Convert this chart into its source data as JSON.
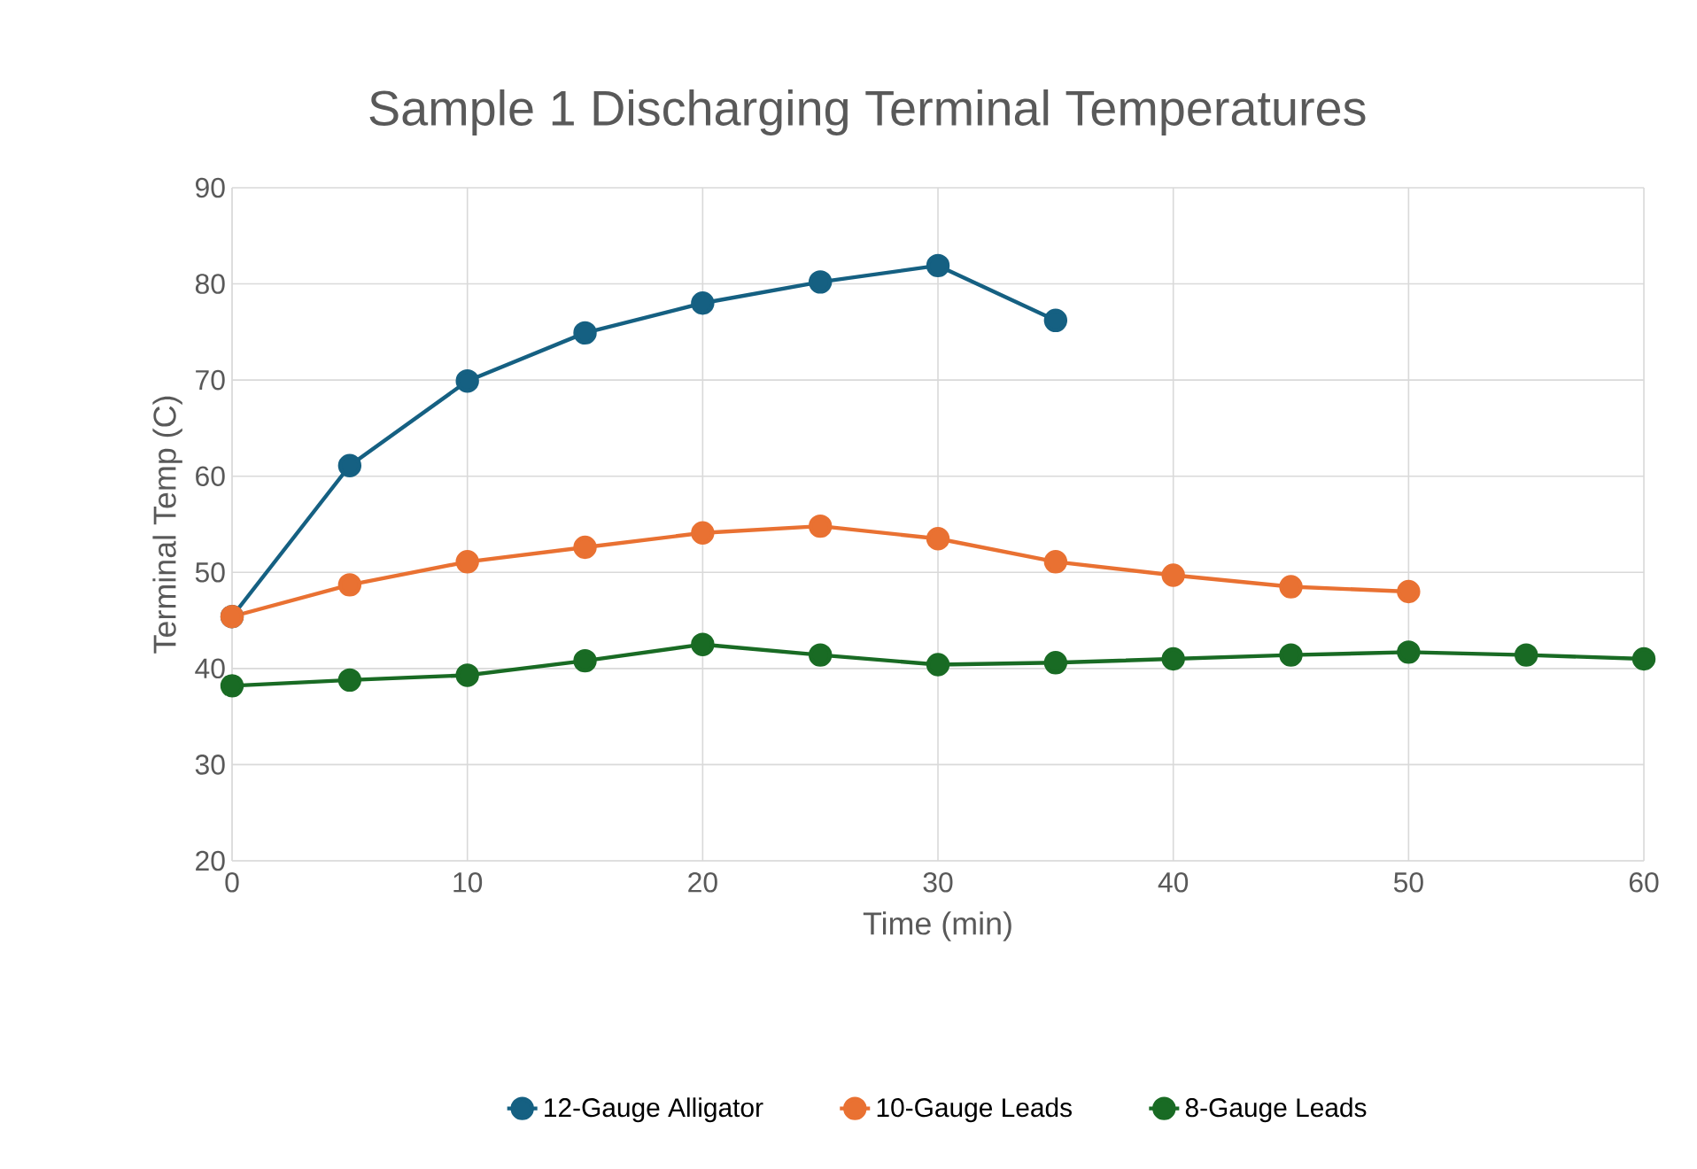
{
  "chart_data": {
    "type": "line",
    "title": "Sample 1 Discharging Terminal Temperatures",
    "xlabel": "Time (min)",
    "ylabel": "Terminal Temp (C)",
    "xlim": [
      0,
      60
    ],
    "xticks": [
      0,
      10,
      20,
      30,
      40,
      50,
      60
    ],
    "ylim": [
      20,
      90
    ],
    "yticks": [
      20,
      30,
      40,
      50,
      60,
      70,
      80,
      90
    ],
    "grid": true,
    "legend": "bottom",
    "marker": "circle",
    "line_style": "solid",
    "series": [
      {
        "name": "12-Gauge Alligator",
        "color": "#156082",
        "x": [
          0,
          5,
          10,
          15,
          20,
          25,
          30,
          35
        ],
        "values": [
          45.4,
          61.1,
          69.9,
          74.9,
          78,
          80.2,
          81.9,
          76.2
        ]
      },
      {
        "name": "10-Gauge Leads",
        "color": "#e97132",
        "x": [
          0,
          5,
          10,
          15,
          20,
          25,
          30,
          35,
          40,
          45,
          50
        ],
        "values": [
          45.4,
          48.7,
          51.1,
          52.6,
          54.1,
          54.8,
          53.5,
          51.1,
          49.7,
          48.5,
          48
        ]
      },
      {
        "name": "8-Gauge Leads",
        "color": "#196b24",
        "x": [
          0,
          5,
          10,
          15,
          20,
          25,
          30,
          35,
          40,
          45,
          50,
          55,
          60
        ],
        "values": [
          38.2,
          38.8,
          39.3,
          40.8,
          42.5,
          41.4,
          40.4,
          40.6,
          41,
          41.4,
          41.7,
          41.4,
          41
        ]
      }
    ]
  }
}
